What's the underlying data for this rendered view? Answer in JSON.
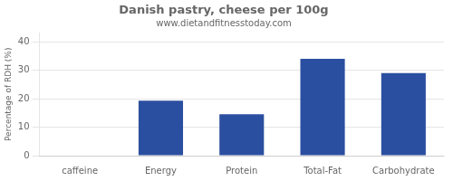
{
  "chart_data": {
    "type": "bar",
    "title": "Danish pastry, cheese per 100g",
    "subtitle": "www.dietandfitnesstoday.com",
    "categories": [
      "caffeine",
      "Energy",
      "Protein",
      "Total-Fat",
      "Carbohydrate"
    ],
    "values": [
      0,
      19.3,
      14.5,
      34.0,
      29.0
    ],
    "color": "#2b4fa0",
    "ylabel": "Percentage of RDH (%)",
    "ylim": [
      0,
      43
    ],
    "yticks": [
      0,
      10,
      20,
      30,
      40
    ],
    "grid": true
  }
}
